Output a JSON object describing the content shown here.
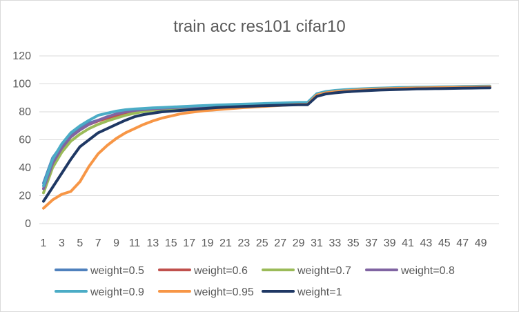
{
  "chart_data": {
    "type": "line",
    "title": "train acc res101 cifar10",
    "xlabel": "",
    "ylabel": "",
    "ylim": [
      0,
      120
    ],
    "yticks": [
      0,
      20,
      40,
      60,
      80,
      100,
      120
    ],
    "grid": "horizontal",
    "legend_position": "bottom",
    "x": [
      1,
      2,
      3,
      4,
      5,
      6,
      7,
      8,
      9,
      10,
      11,
      12,
      13,
      14,
      15,
      16,
      17,
      18,
      19,
      20,
      21,
      22,
      23,
      24,
      25,
      26,
      27,
      28,
      29,
      30,
      31,
      32,
      33,
      34,
      35,
      36,
      37,
      38,
      39,
      40,
      41,
      42,
      43,
      44,
      45,
      46,
      47,
      48,
      49,
      50
    ],
    "x_tick_labels": [
      "1",
      "3",
      "5",
      "7",
      "9",
      "11",
      "13",
      "15",
      "17",
      "19",
      "21",
      "23",
      "25",
      "27",
      "29",
      "31",
      "33",
      "35",
      "37",
      "39",
      "41",
      "43",
      "45",
      "47",
      "49"
    ],
    "series": [
      {
        "name": "weight=0.5",
        "color": "#4f81bd",
        "values": [
          29,
          47,
          56,
          64,
          68,
          72,
          74,
          76,
          78,
          79,
          80,
          80.8,
          81.4,
          82,
          82.4,
          82.8,
          83.2,
          83.6,
          84,
          84.3,
          84.6,
          84.9,
          85.1,
          85.3,
          85.5,
          85.7,
          85.9,
          86.1,
          86.3,
          86.3,
          92.5,
          94,
          94.8,
          95.3,
          95.7,
          96,
          96.3,
          96.5,
          96.7,
          96.9,
          97,
          97.1,
          97.2,
          97.3,
          97.4,
          97.5,
          97.6,
          97.7,
          97.8,
          97.9
        ]
      },
      {
        "name": "weight=0.6",
        "color": "#c0504d",
        "values": [
          25,
          44,
          54,
          62,
          67,
          71,
          73.5,
          75.5,
          77.5,
          79,
          80,
          80.8,
          81.4,
          82,
          82.4,
          82.8,
          83.2,
          83.6,
          84,
          84.3,
          84.6,
          84.9,
          85.1,
          85.3,
          85.5,
          85.7,
          85.9,
          86.1,
          86.3,
          86.3,
          92.5,
          94,
          94.8,
          95.3,
          95.7,
          96,
          96.3,
          96.5,
          96.7,
          96.9,
          97,
          97.1,
          97.2,
          97.3,
          97.4,
          97.5,
          97.6,
          97.7,
          97.8,
          97.9
        ]
      },
      {
        "name": "weight=0.7",
        "color": "#9bbb59",
        "values": [
          22,
          40,
          51,
          59,
          64,
          68,
          71,
          73.5,
          75.5,
          77.5,
          79,
          80.2,
          81,
          81.8,
          82.3,
          82.8,
          83.2,
          83.6,
          84,
          84.3,
          84.6,
          84.9,
          85.1,
          85.3,
          85.5,
          85.7,
          85.9,
          86.1,
          86.3,
          86.3,
          92.5,
          94,
          94.8,
          95.3,
          95.7,
          96,
          96.3,
          96.5,
          96.7,
          96.9,
          97,
          97.1,
          97.2,
          97.3,
          97.4,
          97.5,
          97.6,
          97.7,
          97.8,
          97.9
        ]
      },
      {
        "name": "weight=0.8",
        "color": "#8064a2",
        "values": [
          25,
          43,
          54,
          62,
          67,
          71,
          74,
          76.5,
          78.5,
          80,
          81,
          81.6,
          82.1,
          82.5,
          82.9,
          83.2,
          83.5,
          83.8,
          84.1,
          84.4,
          84.6,
          84.9,
          85.1,
          85.3,
          85.5,
          85.7,
          85.9,
          86.1,
          86.3,
          86.3,
          92.5,
          94,
          94.8,
          95.3,
          95.7,
          96,
          96.3,
          96.5,
          96.7,
          96.9,
          97,
          97.1,
          97.2,
          97.3,
          97.4,
          97.5,
          97.6,
          97.7,
          97.8,
          97.9
        ]
      },
      {
        "name": "weight=0.9",
        "color": "#4bacc6",
        "values": [
          27,
          46,
          57,
          65,
          70,
          74,
          77.5,
          79,
          80.5,
          81.5,
          82,
          82.4,
          82.8,
          83.1,
          83.4,
          83.7,
          84,
          84.3,
          84.6,
          84.9,
          85.1,
          85.3,
          85.5,
          85.7,
          85.9,
          86.1,
          86.3,
          86.5,
          86.7,
          86.8,
          93,
          94.5,
          95.3,
          95.8,
          96.2,
          96.5,
          96.8,
          97,
          97.2,
          97.4,
          97.5,
          97.6,
          97.7,
          97.8,
          97.9,
          98,
          98.1,
          98.2,
          98.3,
          98.4
        ]
      },
      {
        "name": "weight=0.95",
        "color": "#f79646",
        "values": [
          11,
          17,
          21,
          23,
          30,
          41,
          50,
          56,
          61,
          65,
          68,
          71,
          73.5,
          75.5,
          77,
          78.5,
          79.5,
          80.3,
          81,
          81.5,
          82,
          82.5,
          83,
          83.4,
          83.8,
          84.2,
          84.6,
          85,
          85.3,
          85.4,
          92,
          93.6,
          94.4,
          95,
          95.4,
          95.8,
          96.1,
          96.4,
          96.6,
          96.8,
          97,
          97.1,
          97.2,
          97.3,
          97.4,
          97.5,
          97.6,
          97.7,
          97.8,
          97.9
        ]
      },
      {
        "name": "weight=1",
        "color": "#1f3864",
        "values": [
          16,
          26,
          36,
          46,
          55,
          60,
          65,
          68,
          71,
          74,
          76.5,
          78,
          79,
          80,
          80.5,
          81,
          81.5,
          82,
          82.5,
          83,
          83.3,
          83.6,
          83.9,
          84.1,
          84.3,
          84.5,
          84.7,
          84.9,
          85.1,
          85.1,
          91,
          92.8,
          93.6,
          94.2,
          94.6,
          95,
          95.3,
          95.6,
          95.8,
          96,
          96.2,
          96.4,
          96.5,
          96.6,
          96.7,
          96.8,
          96.9,
          97,
          97.1,
          97.2
        ]
      }
    ]
  }
}
